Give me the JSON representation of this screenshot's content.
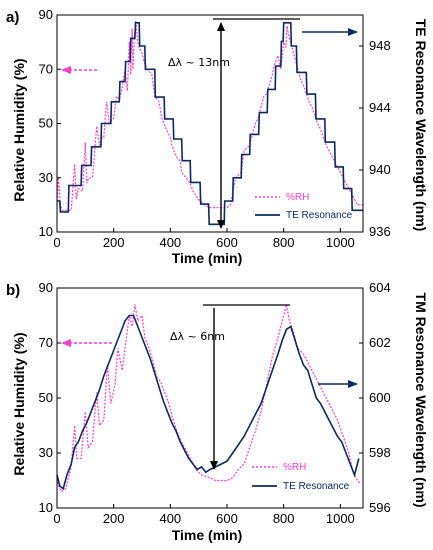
{
  "chart_data": [
    {
      "type": "line",
      "panel_label": "a)",
      "xlabel": "Time (min)",
      "ylabel": "Relative Humidity (%)",
      "y2label": "TE Resonance Wavelength (nm)",
      "xlim": [
        0,
        1080
      ],
      "ylim": [
        10,
        90
      ],
      "y2lim": [
        936,
        950
      ],
      "xticks": [
        0,
        200,
        400,
        600,
        800,
        1000
      ],
      "yticks": [
        10,
        30,
        50,
        70,
        90
      ],
      "y2ticks": [
        936,
        940,
        944,
        948
      ],
      "annotation": "Δλ ~ 13nm",
      "legend_position": "bottom-right",
      "series": [
        {
          "name": "%RH",
          "axis": "left",
          "color": "#ff3fcf",
          "style": "dotted",
          "x": [
            0,
            5,
            12,
            18,
            25,
            50,
            62,
            68,
            75,
            90,
            100,
            105,
            112,
            125,
            140,
            150,
            160,
            165,
            175,
            185,
            200,
            210,
            220,
            228,
            240,
            248,
            255,
            260,
            265,
            268,
            272,
            278,
            285,
            290,
            300,
            305,
            310,
            320,
            335,
            345,
            360,
            370,
            385,
            400,
            405,
            420,
            435,
            440,
            455,
            470,
            480,
            500,
            520,
            540,
            560,
            580,
            590,
            600,
            612,
            630,
            650,
            660,
            680,
            700,
            710,
            730,
            740,
            760,
            768,
            780,
            790,
            800,
            808,
            812,
            818,
            825,
            835,
            845,
            860,
            870,
            890,
            900,
            920,
            930,
            950,
            960,
            980,
            990,
            1010,
            1020,
            1040,
            1050,
            1060,
            1070,
            1080
          ],
          "y": [
            20,
            30,
            20,
            18,
            18,
            18,
            35,
            22,
            26,
            25,
            43,
            28,
            30,
            30,
            49,
            42,
            45,
            45,
            58,
            50,
            52,
            60,
            59,
            62,
            70,
            62,
            80,
            68,
            85,
            70,
            80,
            88,
            80,
            78,
            76,
            74,
            72,
            70,
            68,
            60,
            58,
            52,
            48,
            45,
            42,
            38,
            36,
            32,
            30,
            28,
            25,
            22,
            20,
            19,
            19,
            19,
            19,
            19,
            20,
            30,
            32,
            40,
            42,
            50,
            52,
            60,
            61,
            68,
            72,
            75,
            70,
            80,
            78,
            86,
            82,
            80,
            76,
            72,
            66,
            64,
            58,
            56,
            50,
            48,
            42,
            40,
            36,
            34,
            30,
            28,
            24,
            22,
            20,
            20,
            20
          ]
        },
        {
          "name": "TE Resonance",
          "axis": "right",
          "color": "#0b2a63",
          "style": "solid",
          "x": [
            0,
            10,
            12,
            40,
            42,
            85,
            87,
            120,
            122,
            155,
            157,
            190,
            192,
            220,
            222,
            240,
            242,
            258,
            260,
            275,
            277,
            290,
            292,
            310,
            312,
            345,
            347,
            378,
            380,
            410,
            412,
            440,
            442,
            470,
            472,
            505,
            507,
            535,
            537,
            560,
            562,
            590,
            592,
            620,
            622,
            650,
            652,
            680,
            682,
            712,
            714,
            742,
            744,
            770,
            772,
            790,
            792,
            798,
            800,
            825,
            827,
            845,
            847,
            880,
            882,
            912,
            914,
            945,
            947,
            980,
            982,
            1010,
            1012,
            1040,
            1042,
            1080
          ],
          "y": [
            938,
            938,
            937.3,
            937.3,
            939,
            939,
            940.3,
            940.3,
            941.5,
            941.5,
            943,
            943,
            944.4,
            944.4,
            945.7,
            945.7,
            947,
            947,
            948.5,
            948.5,
            949.5,
            949.5,
            948,
            948,
            946.5,
            946.5,
            944.7,
            944.7,
            943.3,
            943.3,
            942,
            942,
            940.6,
            940.6,
            939.2,
            939.2,
            937.8,
            937.8,
            936.5,
            936.5,
            936.5,
            936.5,
            938,
            938,
            939.5,
            939.5,
            941,
            941,
            942.3,
            942.3,
            943.7,
            943.7,
            945.2,
            945.2,
            946.7,
            946.7,
            948.3,
            948.3,
            949.5,
            949.5,
            948,
            948,
            946.3,
            946.3,
            944.9,
            944.9,
            943.3,
            943.3,
            941.8,
            941.8,
            940.2,
            940.2,
            938.8,
            938.8,
            937.4,
            937.4
          ]
        }
      ]
    },
    {
      "type": "line",
      "panel_label": "b)",
      "xlabel": "Time (min)",
      "ylabel": "Relative Humidity (%)",
      "y2label": "TM Resonance Wavelength (nm)",
      "xlim": [
        0,
        1080
      ],
      "ylim": [
        10,
        90
      ],
      "y2lim": [
        596,
        604
      ],
      "xticks": [
        0,
        200,
        400,
        600,
        800,
        1000
      ],
      "yticks": [
        10,
        30,
        50,
        70,
        90
      ],
      "y2ticks": [
        596,
        598,
        600,
        602,
        604
      ],
      "annotation": "Δλ ~ 6nm",
      "legend_position": "bottom-right",
      "series": [
        {
          "name": "%RH",
          "axis": "left",
          "color": "#ff3fcf",
          "style": "dotted",
          "x": [
            0,
            5,
            15,
            30,
            50,
            62,
            70,
            85,
            100,
            110,
            125,
            140,
            150,
            165,
            178,
            190,
            205,
            215,
            230,
            245,
            255,
            265,
            275,
            285,
            300,
            310,
            325,
            340,
            350,
            365,
            380,
            395,
            410,
            430,
            450,
            470,
            490,
            510,
            540,
            560,
            580,
            600,
            620,
            640,
            660,
            680,
            700,
            720,
            740,
            760,
            780,
            800,
            810,
            820,
            835,
            850,
            870,
            890,
            910,
            930,
            950,
            970,
            990,
            1010,
            1030,
            1040,
            1050,
            1060,
            1070
          ],
          "y": [
            22,
            18,
            16,
            17,
            25,
            40,
            28,
            28,
            45,
            32,
            34,
            52,
            40,
            42,
            62,
            48,
            55,
            68,
            60,
            72,
            80,
            76,
            84,
            78,
            80,
            72,
            68,
            63,
            58,
            56,
            52,
            48,
            42,
            36,
            32,
            28,
            24,
            22,
            21,
            20,
            20,
            20,
            21,
            24,
            26,
            32,
            38,
            45,
            55,
            65,
            72,
            80,
            84,
            78,
            74,
            68,
            66,
            62,
            58,
            54,
            50,
            46,
            42,
            36,
            30,
            25,
            22,
            20,
            19
          ]
        },
        {
          "name": "TE Resonance",
          "axis": "right",
          "color": "#0b2a63",
          "style": "solid",
          "x": [
            0,
            10,
            22,
            35,
            50,
            62,
            75,
            90,
            105,
            120,
            135,
            150,
            165,
            180,
            195,
            210,
            225,
            240,
            255,
            270,
            285,
            300,
            315,
            330,
            345,
            360,
            375,
            390,
            405,
            420,
            435,
            450,
            465,
            480,
            495,
            510,
            525,
            540,
            560,
            580,
            600,
            620,
            640,
            660,
            680,
            700,
            720,
            740,
            760,
            780,
            795,
            810,
            825,
            840,
            855,
            870,
            885,
            900,
            915,
            930,
            945,
            960,
            975,
            990,
            1005,
            1020,
            1035,
            1050,
            1065
          ],
          "y": [
            597.2,
            596.8,
            596.7,
            597.2,
            597.6,
            598.2,
            598.4,
            598.8,
            599.1,
            599.5,
            599.9,
            600.3,
            600.8,
            601.2,
            601.6,
            602.0,
            602.4,
            602.8,
            603.0,
            603.0,
            602.6,
            602.2,
            601.8,
            601.4,
            600.9,
            600.4,
            599.9,
            599.5,
            599.1,
            598.8,
            598.4,
            598.1,
            597.8,
            597.6,
            597.4,
            597.5,
            597.3,
            597.4,
            597.5,
            597.6,
            597.7,
            598.0,
            598.3,
            598.6,
            599.0,
            599.4,
            599.8,
            600.4,
            601.0,
            601.6,
            602.1,
            602.5,
            602.6,
            602.1,
            601.6,
            601.2,
            601.0,
            600.5,
            600.0,
            599.8,
            599.5,
            599.2,
            598.9,
            598.6,
            598.4,
            598.0,
            597.6,
            597.2,
            597.8
          ]
        }
      ]
    }
  ]
}
